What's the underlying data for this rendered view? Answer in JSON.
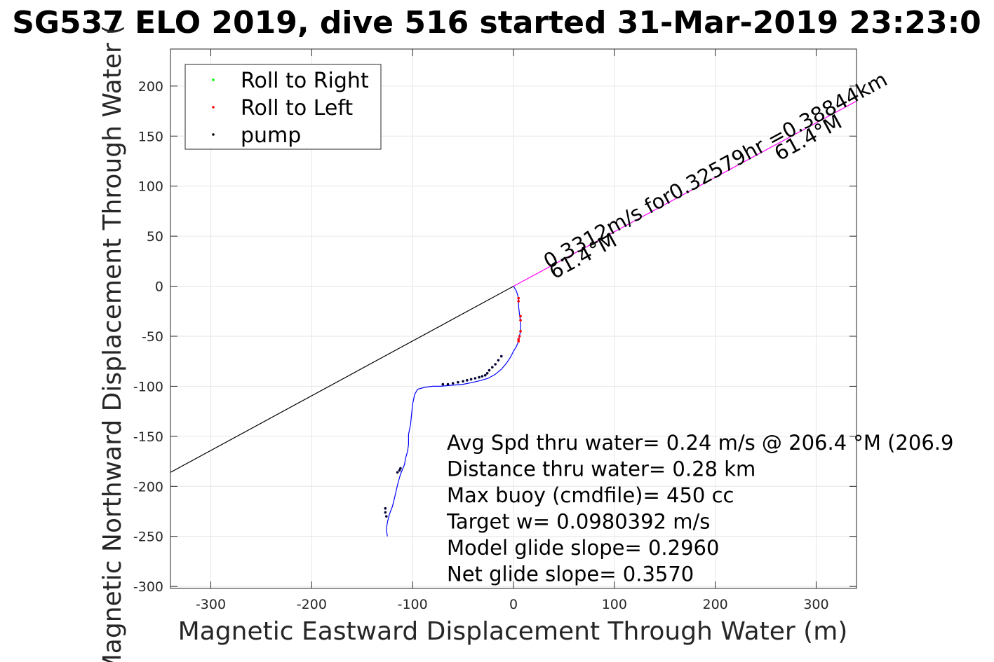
{
  "title": "SG537 ELO 2019, dive 516 started 31-Mar-2019 23:23:0",
  "chart_data": {
    "type": "line",
    "xlabel": "Magnetic Eastward Displacement Through Water (m)",
    "ylabel": "Magnetic Northward Displacement Through Water (",
    "xlim": [
      -340,
      340
    ],
    "ylim": [
      -302,
      237
    ],
    "xticks": [
      -300,
      -200,
      -100,
      0,
      100,
      200,
      300
    ],
    "yticks": [
      -300,
      -250,
      -200,
      -150,
      -100,
      -50,
      0,
      50,
      100,
      150,
      200
    ],
    "grid": true,
    "legend": {
      "placement": "top-left",
      "entries": [
        {
          "label": "Roll to Right",
          "color": "#00ff00"
        },
        {
          "label": "Roll to Left",
          "color": "#ff0000"
        },
        {
          "label": "pump",
          "color": "#000000"
        }
      ]
    },
    "series": [
      {
        "kind": "track",
        "color": "#0000ff",
        "x": [
          0,
          3,
          5,
          5,
          6,
          7,
          7,
          6,
          5,
          3,
          0,
          -3,
          -7,
          -12,
          -18,
          -25,
          -32,
          -40,
          -50,
          -62,
          -72,
          -80,
          -88,
          -95,
          -98,
          -100,
          -101,
          -102,
          -104,
          -104,
          -105,
          -107,
          -108,
          -110,
          -112,
          -114,
          -116,
          -118,
          -120,
          -123,
          -125,
          -126,
          -125
        ],
        "y": [
          0,
          -5,
          -12,
          -20,
          -28,
          -36,
          -44,
          -50,
          -55,
          -60,
          -65,
          -71,
          -77,
          -83,
          -88,
          -92,
          -94,
          -96,
          -98,
          -99,
          -100,
          -100,
          -101,
          -103,
          -108,
          -118,
          -128,
          -138,
          -148,
          -158,
          -165,
          -172,
          -178,
          -183,
          -188,
          -195,
          -203,
          -212,
          -220,
          -228,
          -236,
          -243,
          -250
        ]
      },
      {
        "kind": "heading",
        "color": "#ff00ff",
        "x": [
          0,
          340
        ],
        "y": [
          0,
          185
        ]
      },
      {
        "kind": "net",
        "color": "#000000",
        "x": [
          0,
          -340
        ],
        "y": [
          0,
          -186
        ]
      }
    ],
    "roll_right": {
      "x": [],
      "y": []
    },
    "roll_left": {
      "x": [
        5,
        5,
        7,
        7,
        7,
        6,
        5,
        5
      ],
      "y": [
        -12,
        -15,
        -30,
        -34,
        -45,
        -50,
        -53,
        -55
      ]
    },
    "pump": {
      "x": [
        -12,
        -15,
        -18,
        -21,
        -24,
        -26,
        -28,
        -31,
        -34,
        -38,
        -42,
        -46,
        -50,
        -55,
        -60,
        -65,
        -70,
        -112,
        -113,
        -115,
        -127,
        -127,
        -126
      ],
      "y": [
        -70,
        -74,
        -78,
        -81,
        -84,
        -87,
        -89,
        -90,
        -91,
        -92,
        -93,
        -94,
        -95,
        -96,
        -97,
        -98,
        -98,
        -182,
        -184,
        -186,
        -222,
        -226,
        -230
      ]
    },
    "annotations": {
      "vector_label": "0.3312m/s for0.32579hr =0.38844km",
      "heading_start": "61.4°M",
      "heading_end": "61.4°M",
      "summary_lines": [
        "Avg Spd thru water=  0.24 m/s @ 206.4 °M (206.9",
        "Distance thru water=  0.28 km",
        "Max buoy (cmdfile)= 450 cc",
        "Target w= 0.0980392 m/s",
        "Model glide slope= 0.2960",
        "Net glide slope= 0.3570"
      ]
    }
  }
}
